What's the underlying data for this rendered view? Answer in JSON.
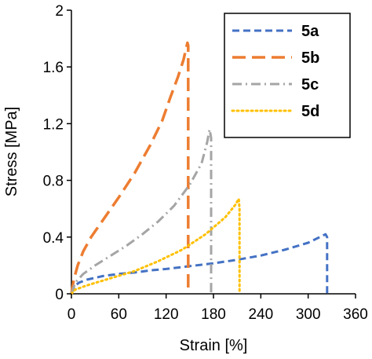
{
  "chart_data": {
    "type": "line",
    "title": "",
    "xlabel": "Strain [%]",
    "ylabel": "Stress [MPa]",
    "xlim": [
      0,
      360
    ],
    "ylim": [
      0,
      2
    ],
    "x_ticks": [
      "0",
      "60",
      "120",
      "180",
      "240",
      "300",
      "360"
    ],
    "y_ticks": [
      "0",
      "0.4",
      "0.8",
      "1.2",
      "1.6",
      "2"
    ],
    "grid": false,
    "legend_position": "top-right",
    "series": [
      {
        "name": "5a",
        "color": "#4472C4",
        "dash": "dashed",
        "points": [
          [
            0,
            0
          ],
          [
            2,
            0.03
          ],
          [
            5,
            0.06
          ],
          [
            10,
            0.08
          ],
          [
            20,
            0.1
          ],
          [
            40,
            0.125
          ],
          [
            60,
            0.14
          ],
          [
            80,
            0.15
          ],
          [
            100,
            0.165
          ],
          [
            120,
            0.175
          ],
          [
            150,
            0.195
          ],
          [
            180,
            0.215
          ],
          [
            210,
            0.24
          ],
          [
            240,
            0.27
          ],
          [
            270,
            0.31
          ],
          [
            300,
            0.36
          ],
          [
            322,
            0.42
          ],
          [
            324,
            0.4
          ],
          [
            324,
            0
          ]
        ]
      },
      {
        "name": "5b",
        "color": "#ED7D31",
        "dash": "long-dashed",
        "points": [
          [
            0,
            0
          ],
          [
            3,
            0.1
          ],
          [
            8,
            0.2
          ],
          [
            15,
            0.3
          ],
          [
            25,
            0.4
          ],
          [
            40,
            0.52
          ],
          [
            60,
            0.68
          ],
          [
            80,
            0.85
          ],
          [
            100,
            1.05
          ],
          [
            115,
            1.22
          ],
          [
            125,
            1.38
          ],
          [
            135,
            1.53
          ],
          [
            142,
            1.65
          ],
          [
            147,
            1.77
          ],
          [
            148,
            1.75
          ],
          [
            148,
            0
          ]
        ]
      },
      {
        "name": "5c",
        "color": "#A5A5A5",
        "dash": "dash-dot",
        "points": [
          [
            0,
            0
          ],
          [
            5,
            0.08
          ],
          [
            15,
            0.14
          ],
          [
            30,
            0.2
          ],
          [
            50,
            0.27
          ],
          [
            70,
            0.34
          ],
          [
            90,
            0.42
          ],
          [
            110,
            0.51
          ],
          [
            130,
            0.62
          ],
          [
            150,
            0.77
          ],
          [
            165,
            0.92
          ],
          [
            172,
            1.07
          ],
          [
            175,
            1.16
          ],
          [
            177,
            1.1
          ],
          [
            177,
            0
          ]
        ]
      },
      {
        "name": "5d",
        "color": "#FFC000",
        "dash": "dotted",
        "points": [
          [
            0,
            0
          ],
          [
            5,
            0.03
          ],
          [
            20,
            0.06
          ],
          [
            50,
            0.11
          ],
          [
            80,
            0.16
          ],
          [
            110,
            0.23
          ],
          [
            140,
            0.31
          ],
          [
            170,
            0.42
          ],
          [
            195,
            0.54
          ],
          [
            208,
            0.63
          ],
          [
            212,
            0.67
          ],
          [
            213,
            0.6
          ],
          [
            213,
            0
          ]
        ]
      }
    ]
  }
}
